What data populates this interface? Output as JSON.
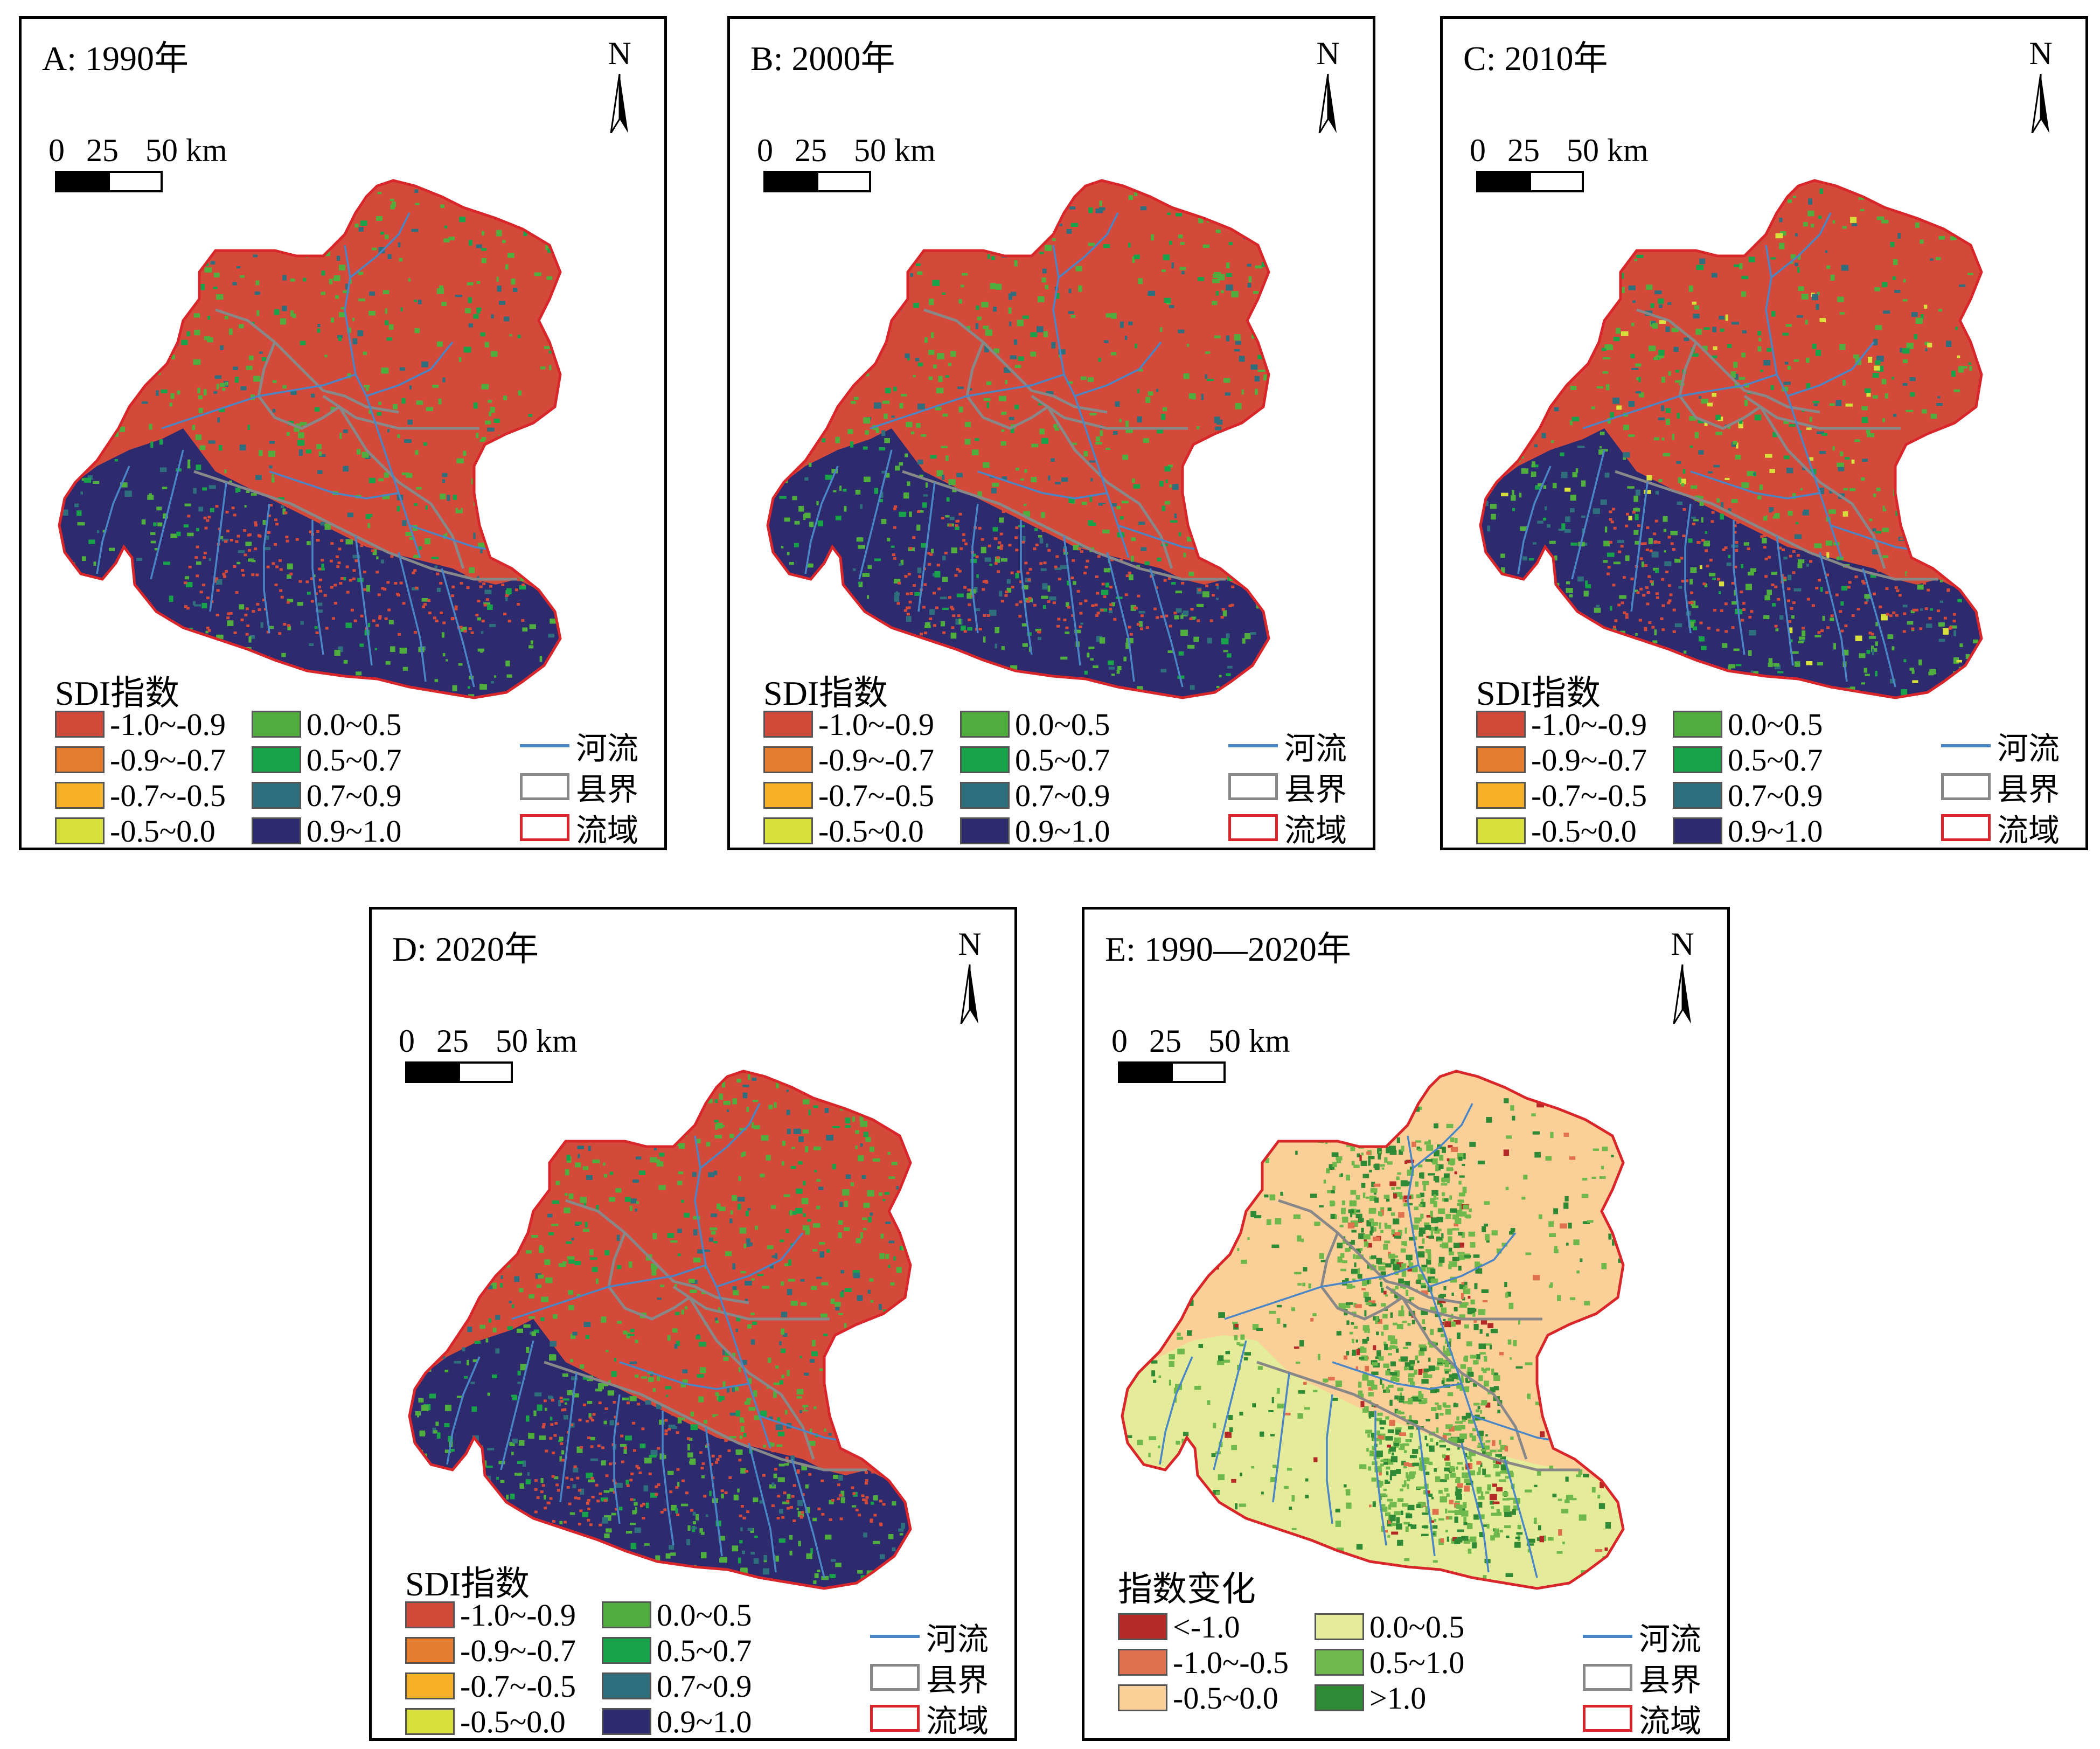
{
  "panels": [
    {
      "id": "A",
      "title": "A: 1990年",
      "kind": "sdi"
    },
    {
      "id": "B",
      "title": "B: 2000年",
      "kind": "sdi"
    },
    {
      "id": "C",
      "title": "C: 2010年",
      "kind": "sdi"
    },
    {
      "id": "D",
      "title": "D: 2020年",
      "kind": "sdi"
    },
    {
      "id": "E",
      "title": "E: 1990—2020年",
      "kind": "change"
    }
  ],
  "north_label": "N",
  "scale": {
    "labels": [
      "0",
      "25",
      "50 km"
    ]
  },
  "sdi_legend": {
    "title": "SDI指数",
    "items": [
      {
        "label": "-1.0~-0.9",
        "color": "#d44a3a"
      },
      {
        "label": "-0.9~-0.7",
        "color": "#e67d2e"
      },
      {
        "label": "-0.7~-0.5",
        "color": "#f8b229"
      },
      {
        "label": "-0.5~0.0",
        "color": "#d8e03c"
      },
      {
        "label": "0.0~0.5",
        "color": "#4fae3e"
      },
      {
        "label": "0.5~0.7",
        "color": "#18a24a"
      },
      {
        "label": "0.7~0.9",
        "color": "#2f6e7c"
      },
      {
        "label": "0.9~1.0",
        "color": "#2d2a6e"
      }
    ]
  },
  "change_legend": {
    "title": "指数变化",
    "items": [
      {
        "label": "<-1.0",
        "color": "#b52a26"
      },
      {
        "label": "-1.0~-0.5",
        "color": "#e0704e"
      },
      {
        "label": "-0.5~0.0",
        "color": "#fbd098"
      },
      {
        "label": "0.0~0.5",
        "color": "#e4ec9a"
      },
      {
        "label": "0.5~1.0",
        "color": "#6fb94c"
      },
      {
        "label": ">1.0",
        "color": "#2e8a35"
      }
    ]
  },
  "line_legend": [
    {
      "label": "河流",
      "kind": "river",
      "color": "#4a86c6"
    },
    {
      "label": "县界",
      "kind": "county",
      "color": "#888888"
    },
    {
      "label": "流域",
      "kind": "basin",
      "color": "#d8262a"
    }
  ]
}
